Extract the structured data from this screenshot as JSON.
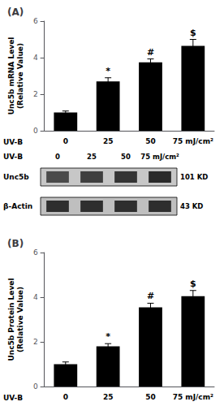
{
  "chart_data": [
    {
      "type": "bar",
      "title": "(A)",
      "xlabel": "UV-B",
      "ylabel": "Unc5b mRNA Level\n(Relative Value)",
      "categories": [
        "0",
        "25",
        "50",
        "75 mJ/cm²"
      ],
      "values": [
        1.0,
        2.7,
        3.75,
        4.65
      ],
      "errors": [
        0.08,
        0.2,
        0.18,
        0.35
      ],
      "annotations": [
        {
          "x": "25",
          "text": "*"
        },
        {
          "x": "50",
          "text": "#"
        },
        {
          "x": "75 mJ/cm²",
          "text": "$"
        }
      ],
      "color": "#000000",
      "ylim": [
        0,
        6
      ],
      "yticks": [
        0,
        2,
        4,
        6
      ],
      "grid": false
    },
    {
      "type": "blot",
      "xlabel": "UV-B",
      "categories": [
        "0",
        "25",
        "50",
        "75 mJ/cm²"
      ],
      "annotations": [
        {
          "row": "Unc5b",
          "text": "101 KD"
        },
        {
          "row": "β-Actin",
          "text": "43 KD"
        }
      ]
    },
    {
      "type": "bar",
      "title": "(B)",
      "xlabel": "UV-B",
      "ylabel": "Unc5b Protein Level\n(Relative Value)",
      "categories": [
        "0",
        "25",
        "50",
        "75 mJ/cm²"
      ],
      "values": [
        1.0,
        1.8,
        3.55,
        4.05
      ],
      "errors": [
        0.1,
        0.12,
        0.18,
        0.25
      ],
      "annotations": [
        {
          "x": "25",
          "text": "*"
        },
        {
          "x": "50",
          "text": "#"
        },
        {
          "x": "75 mJ/cm²",
          "text": "$"
        }
      ],
      "color": "#000000",
      "ylim": [
        0,
        6
      ],
      "yticks": [
        0,
        2,
        4,
        6
      ],
      "grid": false
    }
  ]
}
